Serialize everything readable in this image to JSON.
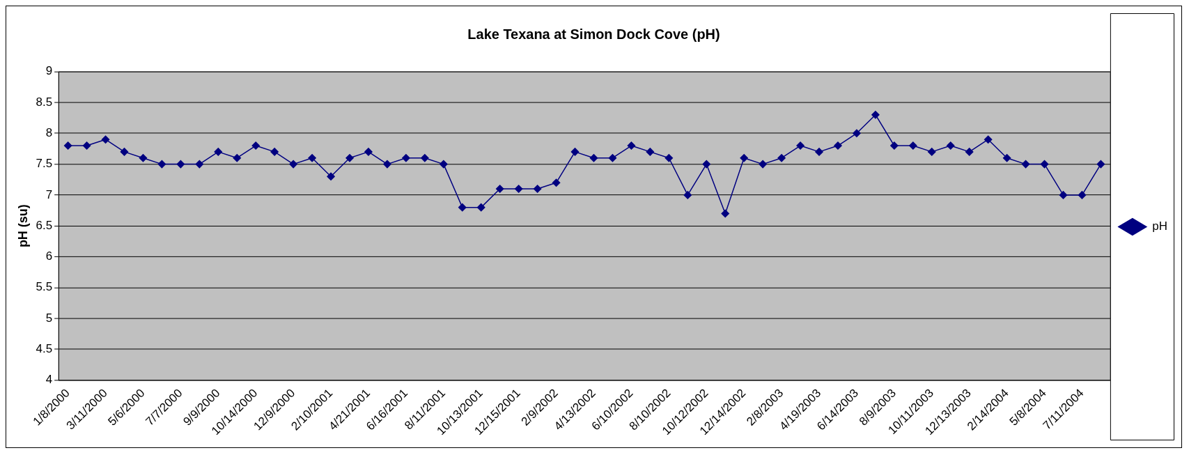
{
  "chart_data": {
    "type": "line",
    "title": "Lake Texana at Simon Dock Cove (pH)",
    "ylabel": "pH (su)",
    "categories": [
      "1/8/2000",
      null,
      "3/11/2000",
      null,
      "5/6/2000",
      null,
      "7/7/2000",
      null,
      "9/9/2000",
      null,
      "10/14/2000",
      null,
      "12/9/2000",
      null,
      "2/10/2001",
      null,
      "4/21/2001",
      null,
      "6/16/2001",
      null,
      "8/11/2001",
      null,
      "10/13/2001",
      null,
      "12/15/2001",
      null,
      "2/9/2002",
      null,
      "4/13/2002",
      null,
      "6/10/2002",
      null,
      "8/10/2002",
      null,
      "10/12/2002",
      null,
      "12/14/2002",
      null,
      "2/8/2003",
      null,
      "4/19/2003",
      null,
      "6/14/2003",
      null,
      "8/9/2003",
      null,
      "10/11/2003",
      null,
      "12/13/2003",
      null,
      "2/14/2004",
      null,
      "5/8/2004",
      null,
      "7/11/2004",
      null
    ],
    "series": [
      {
        "name": "pH",
        "color": "#000080",
        "values": [
          7.8,
          7.8,
          7.9,
          7.7,
          7.6,
          7.5,
          7.5,
          7.5,
          7.7,
          7.6,
          7.8,
          7.7,
          7.5,
          7.6,
          7.3,
          7.6,
          7.7,
          7.5,
          7.6,
          7.6,
          7.5,
          6.8,
          6.8,
          7.1,
          7.1,
          7.1,
          7.2,
          7.7,
          7.6,
          7.6,
          7.8,
          7.7,
          7.6,
          7.0,
          7.5,
          6.7,
          7.6,
          7.5,
          7.6,
          7.8,
          7.7,
          7.8,
          8.0,
          8.3,
          7.8,
          7.8,
          7.7,
          7.8,
          7.7,
          7.9,
          7.6,
          7.5,
          7.5,
          7.0,
          7.0,
          7.5
        ]
      }
    ],
    "ylim": [
      4,
      9
    ],
    "yticks": [
      4,
      4.5,
      5,
      5.5,
      6,
      6.5,
      7,
      7.5,
      8,
      8.5,
      9
    ],
    "grid": "y",
    "legend": "right",
    "marker": "diamond",
    "line_style": "solid"
  }
}
